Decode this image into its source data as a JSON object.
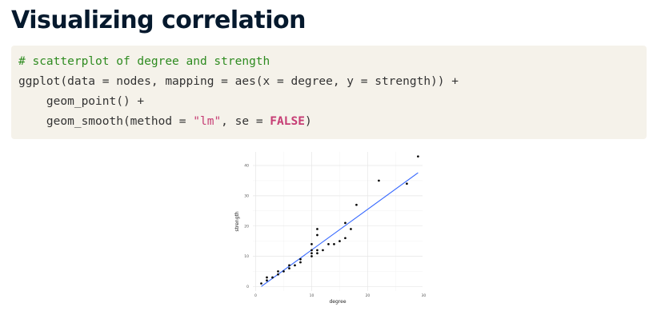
{
  "slide": {
    "title": "Visualizing correlation"
  },
  "code": {
    "line1": "# scatterplot of degree and strength",
    "line2": "ggplot(data = nodes, mapping = aes(x = degree, y = strength)) +",
    "line3_indent": "    ",
    "line3": "geom_point() +",
    "line4_indent": "    ",
    "line4_prefix": "geom_smooth(method = ",
    "line4_string": "\"lm\"",
    "line4_mid": ", se = ",
    "line4_keyword": "FALSE",
    "line4_suffix": ")"
  },
  "colors": {
    "code_background": "#f5f2ea",
    "comment": "#2e8b20",
    "string": "#c63d74",
    "keyword": "#c63d74",
    "trend_line": "#3366ff",
    "points": "#000000"
  },
  "chart_data": {
    "type": "scatter",
    "xlabel": "degree",
    "ylabel": "strength",
    "xlim": [
      -0.5,
      29.8
    ],
    "ylim": [
      -1.5,
      44.5
    ],
    "x_ticks": [
      0,
      10,
      20,
      30
    ],
    "x_tick_labels": [
      "0",
      "10",
      "20",
      "30"
    ],
    "y_ticks": [
      0,
      10,
      20,
      30,
      40
    ],
    "y_tick_labels": [
      "0",
      "10",
      "20",
      "30",
      "40"
    ],
    "grid": true,
    "legend": "none",
    "points": [
      [
        1,
        1
      ],
      [
        2,
        2
      ],
      [
        2,
        3
      ],
      [
        3,
        3
      ],
      [
        4,
        4
      ],
      [
        4,
        5
      ],
      [
        5,
        5
      ],
      [
        6,
        6
      ],
      [
        6,
        7
      ],
      [
        7,
        7
      ],
      [
        8,
        8
      ],
      [
        8,
        9
      ],
      [
        10,
        10
      ],
      [
        10,
        11
      ],
      [
        10,
        12
      ],
      [
        10,
        14
      ],
      [
        11,
        11
      ],
      [
        11,
        12
      ],
      [
        11,
        17
      ],
      [
        11,
        19
      ],
      [
        12,
        12
      ],
      [
        13,
        14
      ],
      [
        14,
        14
      ],
      [
        15,
        15
      ],
      [
        16,
        16
      ],
      [
        16,
        21
      ],
      [
        17,
        19
      ],
      [
        18,
        27
      ],
      [
        22,
        35
      ],
      [
        27,
        34
      ],
      [
        29,
        43
      ]
    ],
    "trend_line": {
      "method": "lm",
      "x_start": 1,
      "y_start": 0,
      "x_end": 29,
      "y_end": 37.6
    }
  }
}
